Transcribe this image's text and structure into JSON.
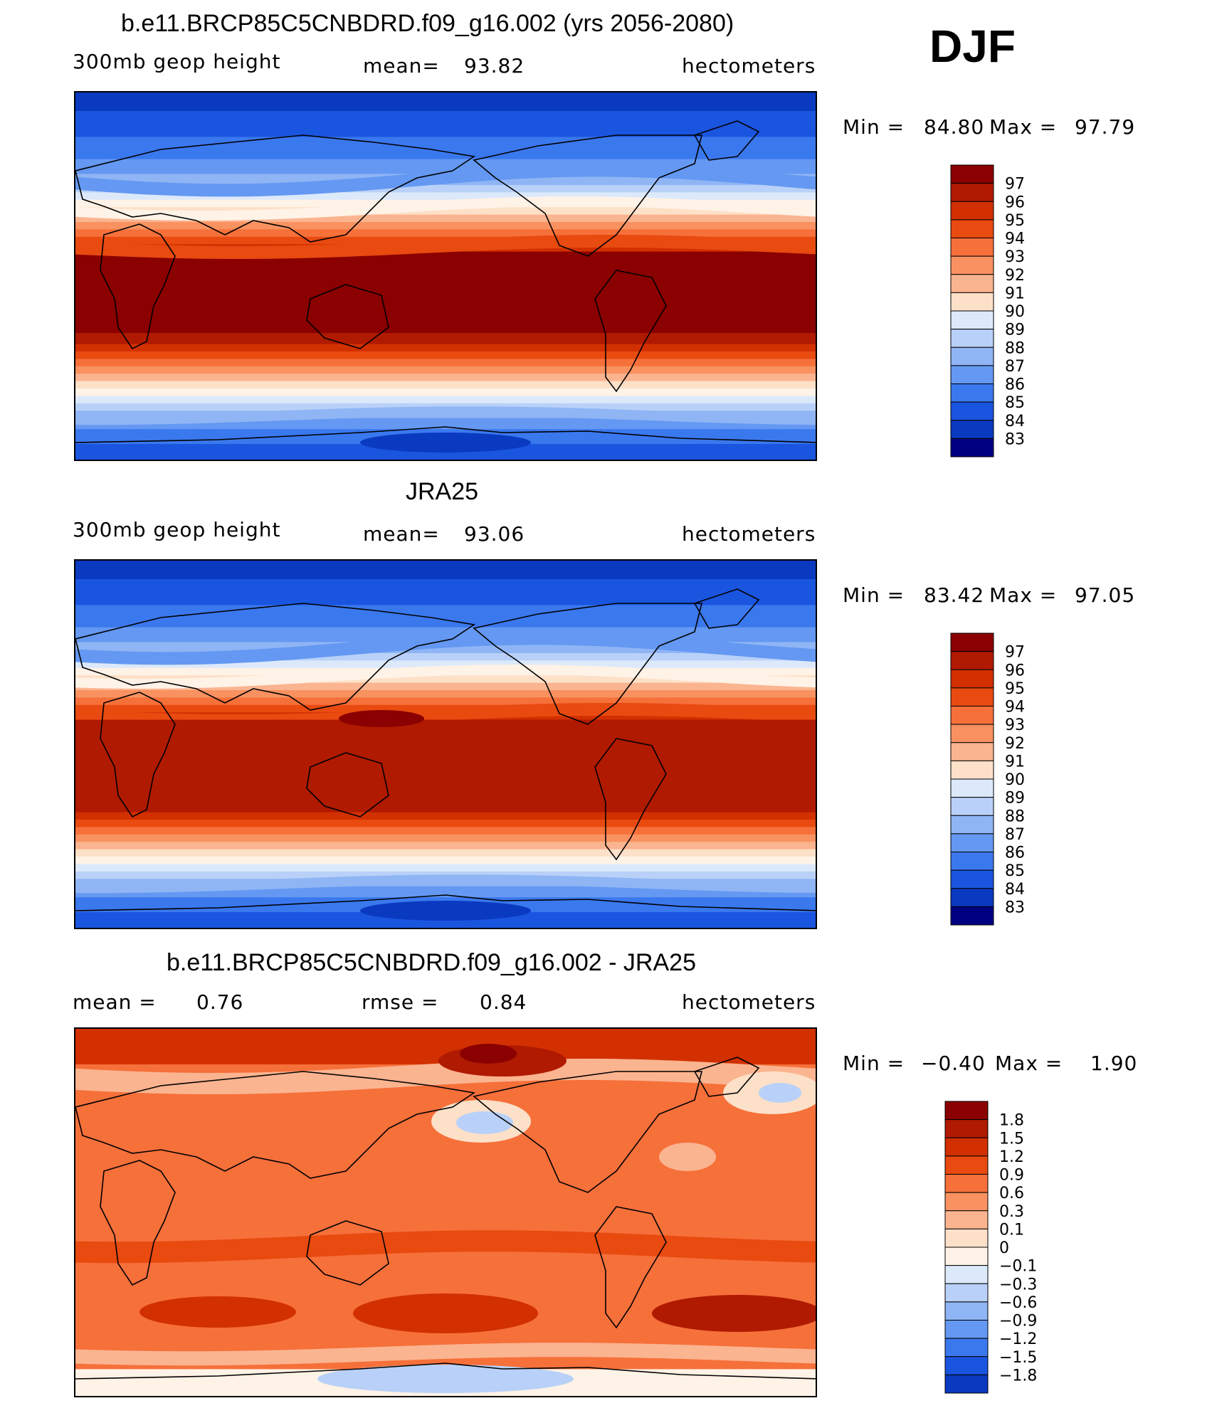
{
  "season": "DJF",
  "chart_data": [
    {
      "type": "heatmap",
      "title": "b.e11.BRCP85C5CNBDRD.f09_g16.002 (yrs 2056-2080)",
      "variable": "300mb geop height",
      "stat_left": "mean=",
      "stat_value": "93.82",
      "units": "hectometers",
      "min_label": "Min =",
      "min": "84.80",
      "max_label": "Max =",
      "max": "97.79",
      "colorbar_labels": [
        "97",
        "96",
        "95",
        "94",
        "93",
        "92",
        "91",
        "90",
        "89",
        "88",
        "87",
        "86",
        "85",
        "84",
        "83"
      ],
      "colorbar_colors": [
        "#8b0000",
        "#b01a00",
        "#d23000",
        "#e84a10",
        "#f6703a",
        "#f99260",
        "#fbb490",
        "#fde0c8",
        "#fff2e6",
        "#dce9fb",
        "#b9d1f8",
        "#8fb5f5",
        "#6498f2",
        "#3a78ee",
        "#1a55e0",
        "#0a3ac0",
        "#06209a",
        "#000080"
      ]
    },
    {
      "type": "heatmap",
      "title": "JRA25",
      "variable": "300mb geop height",
      "stat_left": "mean=",
      "stat_value": "93.06",
      "units": "hectometers",
      "min_label": "Min =",
      "min": "83.42",
      "max_label": "Max =",
      "max": "97.05",
      "colorbar_labels": [
        "97",
        "96",
        "95",
        "94",
        "93",
        "92",
        "91",
        "90",
        "89",
        "88",
        "87",
        "86",
        "85",
        "84",
        "83"
      ]
    },
    {
      "type": "heatmap",
      "title": "b.e11.BRCP85C5CNBDRD.f09_g16.002 - JRA25",
      "stat_left": "mean =",
      "stat_value": "0.76",
      "stat_mid": "rmse =",
      "stat_mid_value": "0.84",
      "units": "hectometers",
      "min_label": "Min =",
      "min": "−0.40",
      "max_label": "Max =",
      "max": "1.90",
      "colorbar_labels": [
        "1.8",
        "1.5",
        "1.2",
        "0.9",
        "0.6",
        "0.3",
        "0.1",
        "0",
        "−0.1",
        "−0.3",
        "−0.6",
        "−0.9",
        "−1.2",
        "−1.5",
        "−1.8"
      ]
    }
  ],
  "palette_warm_cool": [
    "#8b0000",
    "#b01a00",
    "#d23000",
    "#e84a10",
    "#f6703a",
    "#f99260",
    "#fbb490",
    "#fde0c8",
    "#fff2e6",
    "#dce9fb",
    "#b9d1f8",
    "#8fb5f5",
    "#6498f2",
    "#3a78ee",
    "#1a55e0",
    "#0a3ac0",
    "#06209a",
    "#000080"
  ],
  "palette_diff": [
    "#8b0000",
    "#b01a00",
    "#d23000",
    "#e84a10",
    "#f6703a",
    "#f99260",
    "#fbb490",
    "#fde0c8",
    "#fff2e6",
    "#dce9fb",
    "#b9d1f8",
    "#8fb5f5",
    "#6498f2",
    "#3a78ee",
    "#1a55e0",
    "#0a3ac0",
    "#000080"
  ]
}
